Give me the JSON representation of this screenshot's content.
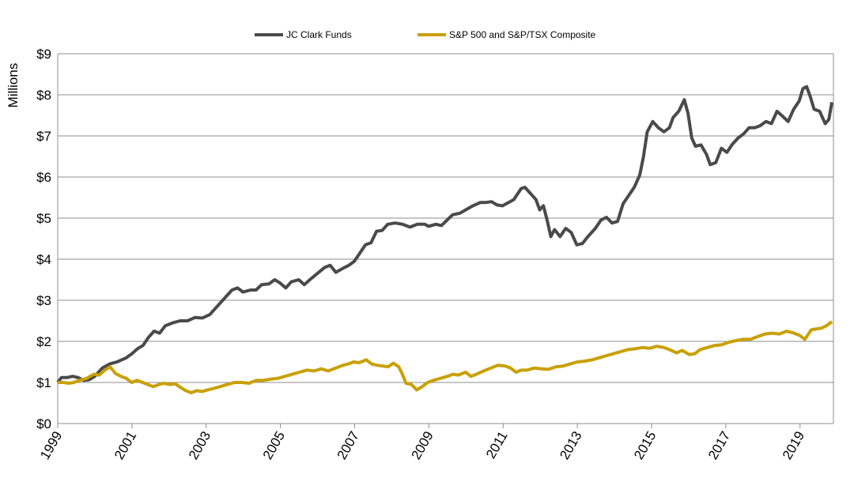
{
  "chart_data": {
    "type": "line",
    "title": "",
    "xlabel": "",
    "ylabel": "Millions",
    "xlim": [
      1999,
      2019.9
    ],
    "ylim": [
      0,
      9
    ],
    "grid": "horizontal",
    "legend_position": "top",
    "x_tick_labels": [
      "1999",
      "2001",
      "2003",
      "2005",
      "2007",
      "2009",
      "2011",
      "2013",
      "2015",
      "2017",
      "2019"
    ],
    "x_ticks": [
      1999,
      2001,
      2003,
      2005,
      2007,
      2009,
      2011,
      2013,
      2015,
      2017,
      2019
    ],
    "y_ticks": [
      0,
      1,
      2,
      3,
      4,
      5,
      6,
      7,
      8,
      9
    ],
    "y_tick_labels": [
      "$0",
      "$1",
      "$2",
      "$3",
      "$4",
      "$5",
      "$6",
      "$7",
      "$8",
      "$9"
    ],
    "series": [
      {
        "name": "JC Clark Funds",
        "color": "#4a4a4a",
        "points": [
          [
            1999.0,
            1.0
          ],
          [
            1999.1,
            1.12
          ],
          [
            1999.25,
            1.12
          ],
          [
            1999.4,
            1.15
          ],
          [
            1999.55,
            1.12
          ],
          [
            1999.7,
            1.05
          ],
          [
            1999.85,
            1.07
          ],
          [
            2000.0,
            1.15
          ],
          [
            2000.2,
            1.35
          ],
          [
            2000.4,
            1.45
          ],
          [
            2000.6,
            1.5
          ],
          [
            2000.85,
            1.6
          ],
          [
            2001.0,
            1.7
          ],
          [
            2001.15,
            1.82
          ],
          [
            2001.3,
            1.9
          ],
          [
            2001.45,
            2.1
          ],
          [
            2001.6,
            2.25
          ],
          [
            2001.75,
            2.2
          ],
          [
            2001.9,
            2.38
          ],
          [
            2002.1,
            2.45
          ],
          [
            2002.3,
            2.5
          ],
          [
            2002.5,
            2.5
          ],
          [
            2002.7,
            2.58
          ],
          [
            2002.9,
            2.57
          ],
          [
            2003.1,
            2.65
          ],
          [
            2003.3,
            2.85
          ],
          [
            2003.5,
            3.05
          ],
          [
            2003.7,
            3.25
          ],
          [
            2003.85,
            3.3
          ],
          [
            2004.0,
            3.2
          ],
          [
            2004.2,
            3.25
          ],
          [
            2004.35,
            3.25
          ],
          [
            2004.5,
            3.38
          ],
          [
            2004.7,
            3.4
          ],
          [
            2004.85,
            3.5
          ],
          [
            2005.0,
            3.42
          ],
          [
            2005.15,
            3.3
          ],
          [
            2005.3,
            3.45
          ],
          [
            2005.5,
            3.5
          ],
          [
            2005.65,
            3.38
          ],
          [
            2005.8,
            3.5
          ],
          [
            2006.0,
            3.65
          ],
          [
            2006.2,
            3.8
          ],
          [
            2006.35,
            3.85
          ],
          [
            2006.5,
            3.68
          ],
          [
            2006.7,
            3.78
          ],
          [
            2006.85,
            3.85
          ],
          [
            2007.0,
            3.95
          ],
          [
            2007.15,
            4.15
          ],
          [
            2007.3,
            4.35
          ],
          [
            2007.45,
            4.4
          ],
          [
            2007.6,
            4.68
          ],
          [
            2007.75,
            4.7
          ],
          [
            2007.9,
            4.85
          ],
          [
            2008.1,
            4.88
          ],
          [
            2008.3,
            4.85
          ],
          [
            2008.5,
            4.78
          ],
          [
            2008.7,
            4.85
          ],
          [
            2008.9,
            4.85
          ],
          [
            2009.0,
            4.8
          ],
          [
            2009.2,
            4.85
          ],
          [
            2009.35,
            4.82
          ],
          [
            2009.5,
            4.95
          ],
          [
            2009.65,
            5.08
          ],
          [
            2009.85,
            5.12
          ],
          [
            2010.0,
            5.2
          ],
          [
            2010.2,
            5.3
          ],
          [
            2010.4,
            5.38
          ],
          [
            2010.55,
            5.38
          ],
          [
            2010.7,
            5.4
          ],
          [
            2010.85,
            5.32
          ],
          [
            2011.0,
            5.3
          ],
          [
            2011.1,
            5.35
          ],
          [
            2011.2,
            5.4
          ],
          [
            2011.3,
            5.45
          ],
          [
            2011.5,
            5.72
          ],
          [
            2011.6,
            5.75
          ],
          [
            2011.75,
            5.6
          ],
          [
            2011.9,
            5.45
          ],
          [
            2012.0,
            5.2
          ],
          [
            2012.1,
            5.3
          ],
          [
            2012.2,
            4.95
          ],
          [
            2012.3,
            4.55
          ],
          [
            2012.4,
            4.72
          ],
          [
            2012.55,
            4.55
          ],
          [
            2012.7,
            4.75
          ],
          [
            2012.85,
            4.65
          ],
          [
            2013.0,
            4.35
          ],
          [
            2013.15,
            4.38
          ],
          [
            2013.3,
            4.55
          ],
          [
            2013.5,
            4.75
          ],
          [
            2013.65,
            4.95
          ],
          [
            2013.8,
            5.02
          ],
          [
            2013.95,
            4.88
          ],
          [
            2014.1,
            4.92
          ],
          [
            2014.25,
            5.35
          ],
          [
            2014.4,
            5.55
          ],
          [
            2014.55,
            5.75
          ],
          [
            2014.7,
            6.05
          ],
          [
            2014.8,
            6.5
          ],
          [
            2014.9,
            7.1
          ],
          [
            2015.05,
            7.35
          ],
          [
            2015.2,
            7.2
          ],
          [
            2015.35,
            7.1
          ],
          [
            2015.5,
            7.2
          ],
          [
            2015.6,
            7.45
          ],
          [
            2015.75,
            7.6
          ],
          [
            2015.9,
            7.88
          ],
          [
            2016.0,
            7.55
          ],
          [
            2016.1,
            6.95
          ],
          [
            2016.2,
            6.75
          ],
          [
            2016.35,
            6.78
          ],
          [
            2016.5,
            6.55
          ],
          [
            2016.6,
            6.3
          ],
          [
            2016.75,
            6.35
          ],
          [
            2016.9,
            6.7
          ],
          [
            2017.05,
            6.6
          ],
          [
            2017.2,
            6.8
          ],
          [
            2017.35,
            6.95
          ],
          [
            2017.5,
            7.05
          ],
          [
            2017.65,
            7.2
          ],
          [
            2017.8,
            7.2
          ],
          [
            2017.95,
            7.25
          ],
          [
            2018.1,
            7.35
          ],
          [
            2018.25,
            7.3
          ],
          [
            2018.4,
            7.6
          ],
          [
            2018.55,
            7.48
          ],
          [
            2018.7,
            7.35
          ],
          [
            2018.85,
            7.65
          ],
          [
            2019.0,
            7.85
          ],
          [
            2019.1,
            8.15
          ],
          [
            2019.2,
            8.2
          ],
          [
            2019.3,
            7.95
          ],
          [
            2019.4,
            7.65
          ],
          [
            2019.55,
            7.6
          ],
          [
            2019.7,
            7.3
          ],
          [
            2019.8,
            7.4
          ],
          [
            2019.88,
            7.82
          ]
        ]
      },
      {
        "name": "S&P 500 and S&P/TSX Composite",
        "color": "#c9a005",
        "points": [
          [
            1999.0,
            1.0
          ],
          [
            1999.15,
            1.0
          ],
          [
            1999.3,
            0.98
          ],
          [
            1999.45,
            1.0
          ],
          [
            1999.6,
            1.05
          ],
          [
            1999.8,
            1.1
          ],
          [
            2000.0,
            1.2
          ],
          [
            2000.15,
            1.18
          ],
          [
            2000.3,
            1.3
          ],
          [
            2000.45,
            1.38
          ],
          [
            2000.6,
            1.22
          ],
          [
            2000.75,
            1.15
          ],
          [
            2000.9,
            1.1
          ],
          [
            2001.05,
            1.0
          ],
          [
            2001.2,
            1.05
          ],
          [
            2001.35,
            1.0
          ],
          [
            2001.5,
            0.95
          ],
          [
            2001.65,
            0.9
          ],
          [
            2001.8,
            0.95
          ],
          [
            2001.95,
            0.98
          ],
          [
            2002.1,
            0.95
          ],
          [
            2002.25,
            0.97
          ],
          [
            2002.4,
            0.88
          ],
          [
            2002.55,
            0.8
          ],
          [
            2002.7,
            0.75
          ],
          [
            2002.85,
            0.8
          ],
          [
            2003.0,
            0.78
          ],
          [
            2003.15,
            0.82
          ],
          [
            2003.3,
            0.85
          ],
          [
            2003.5,
            0.9
          ],
          [
            2003.7,
            0.95
          ],
          [
            2003.9,
            1.0
          ],
          [
            2004.1,
            1.0
          ],
          [
            2004.3,
            0.98
          ],
          [
            2004.5,
            1.05
          ],
          [
            2004.7,
            1.05
          ],
          [
            2004.9,
            1.08
          ],
          [
            2005.1,
            1.1
          ],
          [
            2005.3,
            1.15
          ],
          [
            2005.5,
            1.2
          ],
          [
            2005.7,
            1.25
          ],
          [
            2005.9,
            1.3
          ],
          [
            2006.1,
            1.28
          ],
          [
            2006.3,
            1.33
          ],
          [
            2006.5,
            1.28
          ],
          [
            2006.7,
            1.35
          ],
          [
            2006.9,
            1.42
          ],
          [
            2007.05,
            1.45
          ],
          [
            2007.2,
            1.5
          ],
          [
            2007.35,
            1.48
          ],
          [
            2007.55,
            1.55
          ],
          [
            2007.7,
            1.45
          ],
          [
            2007.85,
            1.42
          ],
          [
            2008.0,
            1.4
          ],
          [
            2008.15,
            1.38
          ],
          [
            2008.3,
            1.47
          ],
          [
            2008.45,
            1.38
          ],
          [
            2008.55,
            1.2
          ],
          [
            2008.65,
            0.98
          ],
          [
            2008.8,
            0.95
          ],
          [
            2008.95,
            0.82
          ],
          [
            2009.1,
            0.9
          ],
          [
            2009.25,
            1.0
          ],
          [
            2009.4,
            1.05
          ],
          [
            2009.6,
            1.1
          ],
          [
            2009.8,
            1.15
          ],
          [
            2009.95,
            1.2
          ],
          [
            2010.1,
            1.18
          ],
          [
            2010.3,
            1.25
          ],
          [
            2010.45,
            1.15
          ],
          [
            2010.6,
            1.2
          ],
          [
            2010.8,
            1.28
          ],
          [
            2011.0,
            1.35
          ],
          [
            2011.2,
            1.42
          ],
          [
            2011.4,
            1.4
          ],
          [
            2011.55,
            1.35
          ],
          [
            2011.7,
            1.25
          ],
          [
            2011.85,
            1.3
          ],
          [
            2012.0,
            1.3
          ],
          [
            2012.2,
            1.35
          ],
          [
            2012.4,
            1.33
          ],
          [
            2012.6,
            1.32
          ],
          [
            2012.8,
            1.38
          ],
          [
            2013.0,
            1.4
          ],
          [
            2013.2,
            1.45
          ],
          [
            2013.4,
            1.5
          ],
          [
            2013.6,
            1.52
          ],
          [
            2013.8,
            1.55
          ],
          [
            2014.0,
            1.6
          ],
          [
            2014.2,
            1.65
          ],
          [
            2014.4,
            1.7
          ],
          [
            2014.6,
            1.75
          ],
          [
            2014.8,
            1.8
          ],
          [
            2015.0,
            1.82
          ],
          [
            2015.2,
            1.85
          ],
          [
            2015.4,
            1.83
          ],
          [
            2015.6,
            1.88
          ],
          [
            2015.8,
            1.85
          ],
          [
            2016.0,
            1.78
          ],
          [
            2016.15,
            1.72
          ],
          [
            2016.3,
            1.78
          ],
          [
            2016.5,
            1.68
          ],
          [
            2016.65,
            1.7
          ],
          [
            2016.8,
            1.8
          ],
          [
            2017.0,
            1.85
          ],
          [
            2017.2,
            1.9
          ],
          [
            2017.4,
            1.92
          ],
          [
            2017.6,
            1.98
          ],
          [
            2017.8,
            2.02
          ],
          [
            2018.0,
            2.05
          ],
          [
            2018.2,
            2.05
          ],
          [
            2018.4,
            2.12
          ],
          [
            2018.6,
            2.18
          ],
          [
            2018.8,
            2.2
          ],
          [
            2019.0,
            2.18
          ],
          [
            2019.2,
            2.25
          ],
          [
            2019.4,
            2.2
          ],
          [
            2019.55,
            2.15
          ],
          [
            2019.7,
            2.05
          ],
          [
            2019.88,
            2.28
          ],
          [
            2020.0,
            2.3
          ],
          [
            2020.15,
            2.32
          ],
          [
            2020.3,
            2.38
          ],
          [
            2020.45,
            2.48
          ]
        ]
      }
    ]
  }
}
